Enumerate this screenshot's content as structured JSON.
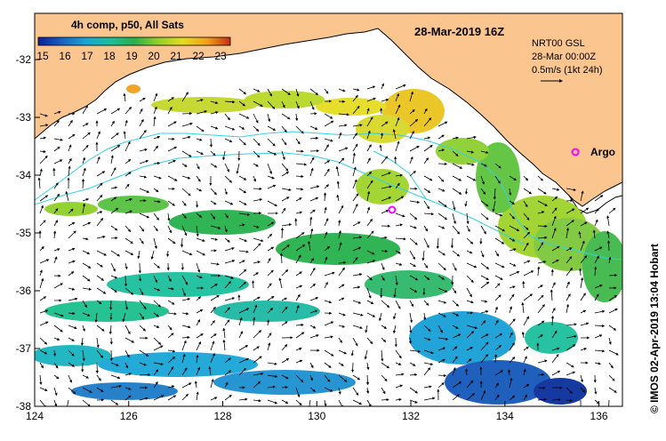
{
  "map": {
    "date_title": "28-Mar-2019 16Z",
    "composite_label": "4h comp, p50, All Sats",
    "current_product": "NRT00 GSL",
    "current_date": "28-Mar 00:00Z",
    "vector_scale": "0.5m/s (1kt 24h)",
    "credit": "© IMOS 02-Apr-2019 13:04 Hobart",
    "argo_label": "Argo",
    "land_color": "#fbc58f",
    "ocean_color": "#ffffff",
    "contour_color": "#36d0e8",
    "argo_color": "#ff00ff"
  },
  "colorbar": {
    "ticks": [
      "15",
      "16",
      "17",
      "18",
      "19",
      "20",
      "21",
      "22",
      "23"
    ],
    "colors": [
      "#0a1f9c",
      "#1560c8",
      "#18a6d8",
      "#1bbf9c",
      "#27b04a",
      "#8fcf2a",
      "#e5dc22",
      "#f2a019",
      "#c03010"
    ]
  },
  "axes": {
    "x_ticks": [
      "124",
      "126",
      "128",
      "130",
      "132",
      "134",
      "136"
    ],
    "y_ticks": [
      "-32",
      "-33",
      "-34",
      "-35",
      "-36",
      "-37",
      "-38"
    ],
    "x_range": [
      124,
      136.5
    ],
    "y_range": [
      -38,
      -31.2
    ]
  },
  "argo_floats": [
    {
      "lon": 131.6,
      "lat": -34.6
    },
    {
      "lon": 135.5,
      "lat": -33.6
    }
  ]
}
